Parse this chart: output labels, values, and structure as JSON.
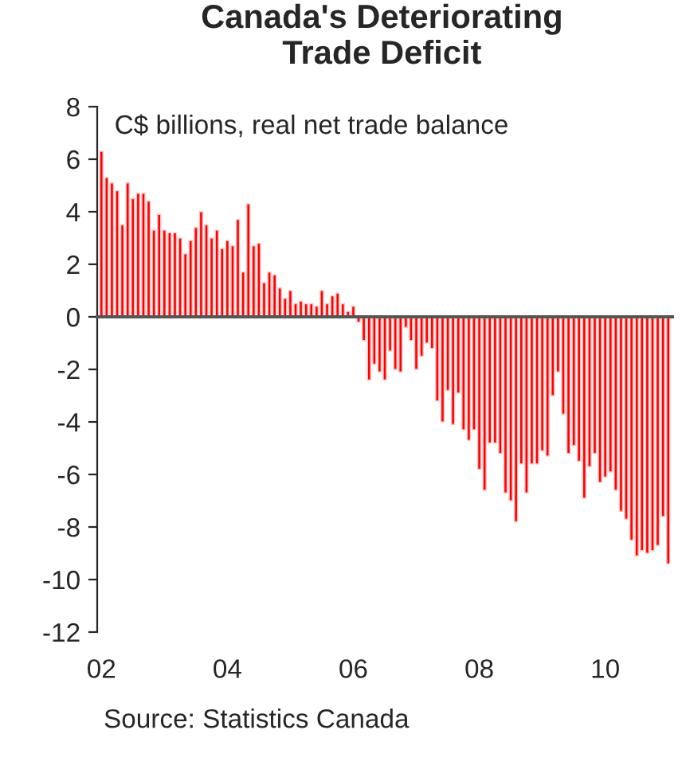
{
  "chart_data": {
    "type": "bar",
    "title": "Canada's Deteriorating\nTrade Deficit",
    "subtitle": "C$ billions, real net trade balance",
    "annotations": [
      "Source: Statistics Canada"
    ],
    "categories": [
      "02",
      null,
      null,
      null,
      null,
      null,
      null,
      null,
      null,
      null,
      null,
      null,
      null,
      null,
      null,
      null,
      null,
      null,
      null,
      null,
      null,
      null,
      null,
      null,
      "04",
      null,
      null,
      null,
      null,
      null,
      null,
      null,
      null,
      null,
      null,
      null,
      null,
      null,
      null,
      null,
      null,
      null,
      null,
      null,
      null,
      null,
      null,
      null,
      "06",
      null,
      null,
      null,
      null,
      null,
      null,
      null,
      null,
      null,
      null,
      null,
      null,
      null,
      null,
      null,
      null,
      null,
      null,
      null,
      null,
      null,
      null,
      null,
      "08",
      null,
      null,
      null,
      null,
      null,
      null,
      null,
      null,
      null,
      null,
      null,
      null,
      null,
      null,
      null,
      null,
      null,
      null,
      null,
      null,
      null,
      null,
      null,
      "10",
      null,
      null,
      null,
      null,
      null,
      null,
      null,
      null,
      null,
      null,
      null,
      null
    ],
    "values": [
      6.3,
      5.3,
      5.1,
      4.8,
      3.5,
      5.1,
      4.5,
      4.7,
      4.7,
      4.4,
      3.3,
      3.9,
      3.3,
      3.2,
      3.2,
      3.0,
      2.4,
      2.9,
      3.4,
      4.0,
      3.5,
      3.0,
      3.3,
      2.6,
      2.9,
      2.7,
      3.7,
      1.7,
      4.3,
      2.7,
      2.8,
      1.3,
      1.7,
      1.6,
      1.1,
      0.7,
      1.0,
      0.5,
      0.6,
      0.5,
      0.5,
      0.4,
      1.0,
      0.5,
      0.8,
      0.9,
      0.5,
      0.2,
      0.4,
      -0.2,
      -0.9,
      -2.4,
      -1.8,
      -2.1,
      -2.4,
      -1.3,
      -2.0,
      -2.1,
      -0.4,
      -0.9,
      -2.0,
      -1.5,
      -1.0,
      -1.2,
      -3.2,
      -4.0,
      -2.8,
      -4.1,
      -2.9,
      -4.3,
      -4.7,
      -4.3,
      -5.8,
      -6.6,
      -4.8,
      -4.8,
      -5.2,
      -6.7,
      -7.0,
      -7.8,
      -5.6,
      -6.7,
      -5.6,
      -5.6,
      -5.1,
      -5.3,
      -3.0,
      -2.1,
      -3.7,
      -5.2,
      -4.9,
      -5.5,
      -6.9,
      -5.7,
      -5.2,
      -6.3,
      -6.1,
      -5.9,
      -6.6,
      -7.4,
      -7.7,
      -8.5,
      -9.1,
      -8.9,
      -9.0,
      -8.9,
      -8.7,
      -7.6,
      -9.4
    ],
    "color": "#ff0000",
    "ylim": [
      -12,
      8
    ],
    "yticks": [
      -12,
      -10,
      -8,
      -6,
      -4,
      -2,
      0,
      2,
      4,
      6,
      8
    ]
  }
}
